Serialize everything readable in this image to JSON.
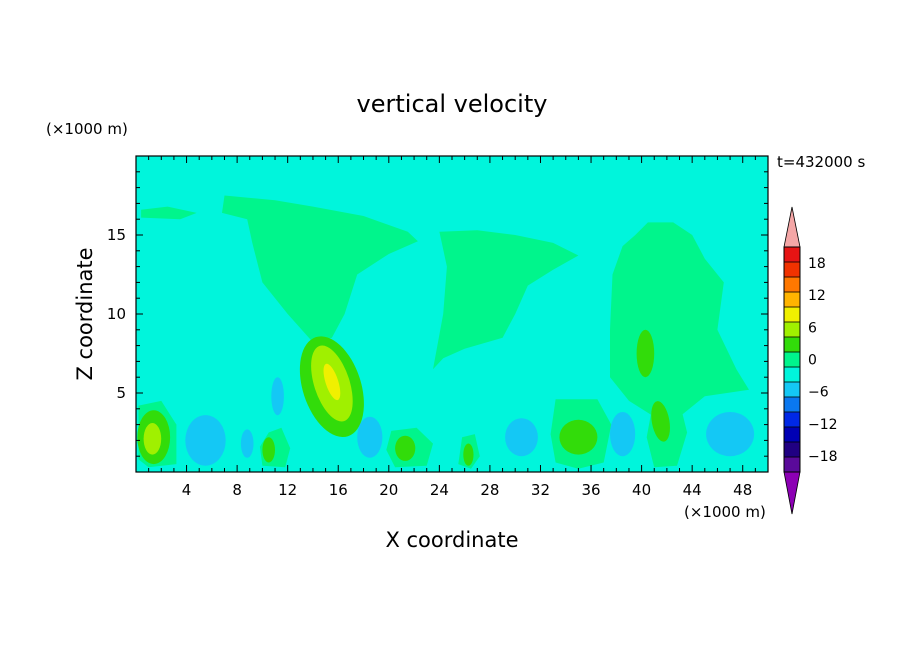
{
  "chart_data": {
    "type": "heatmap",
    "title": "vertical velocity",
    "xlabel": "X coordinate",
    "ylabel": "Z coordinate",
    "x_unit": "(×1000 m)",
    "y_unit": "(×1000 m)",
    "time_label": "t=432000 s",
    "xlim": [
      0,
      50
    ],
    "ylim": [
      0,
      20
    ],
    "x_ticks": [
      4,
      8,
      12,
      16,
      20,
      24,
      28,
      32,
      36,
      40,
      44,
      48
    ],
    "y_ticks": [
      5,
      10,
      15
    ],
    "x_tick_labels": [
      "4",
      "8",
      "12",
      "16",
      "20",
      "24",
      "28",
      "32",
      "36",
      "40",
      "44",
      "48"
    ],
    "y_tick_labels": [
      "5",
      "10",
      "15"
    ],
    "colorbar": {
      "levels": [
        -21,
        -18,
        -15,
        -12,
        -9,
        -6,
        -3,
        0,
        3,
        6,
        9,
        12,
        15,
        18,
        21
      ],
      "labels": [
        "18",
        "12",
        "6",
        "0",
        "−6",
        "−12",
        "−18"
      ],
      "label_values": [
        18,
        12,
        6,
        0,
        -6,
        -12,
        -18
      ],
      "colors": [
        "#5a0a9a",
        "#200082",
        "#0000b4",
        "#0028e6",
        "#0a78f0",
        "#14c8f5",
        "#00f5dc",
        "#00f58c",
        "#32dc0a",
        "#a0f000",
        "#f0f000",
        "#ffb400",
        "#ff7800",
        "#f03200",
        "#e61414"
      ],
      "under_color": "#8c00b4",
      "over_color": "#f4a6a6"
    },
    "background_value": -1.5,
    "regions": [
      {
        "kind": "polygon",
        "value": 1.5,
        "points": [
          [
            7,
            17.5
          ],
          [
            11,
            17.2
          ],
          [
            14,
            16.8
          ],
          [
            18,
            16.2
          ],
          [
            21.5,
            15.2
          ],
          [
            22.3,
            14.6
          ],
          [
            20,
            13.8
          ],
          [
            17.5,
            12.5
          ],
          [
            16.5,
            10
          ],
          [
            15.5,
            8.5
          ],
          [
            14,
            8.2
          ],
          [
            12,
            10
          ],
          [
            10,
            12
          ],
          [
            9.2,
            14.5
          ],
          [
            8.8,
            16
          ],
          [
            6.8,
            16.4
          ]
        ]
      },
      {
        "kind": "polygon",
        "value": 1.5,
        "points": [
          [
            0.4,
            16.6
          ],
          [
            2.5,
            16.8
          ],
          [
            4.8,
            16.4
          ],
          [
            3.5,
            16
          ],
          [
            0.4,
            16.1
          ]
        ]
      },
      {
        "kind": "polygon",
        "value": 1.5,
        "points": [
          [
            24,
            15.2
          ],
          [
            27,
            15.3
          ],
          [
            30,
            15
          ],
          [
            33,
            14.5
          ],
          [
            35,
            13.7
          ],
          [
            33,
            12.8
          ],
          [
            31,
            11.8
          ],
          [
            30,
            10
          ],
          [
            29,
            8.5
          ],
          [
            26,
            7.8
          ],
          [
            24.3,
            7.2
          ],
          [
            23.5,
            6.5
          ],
          [
            24.3,
            10
          ],
          [
            24.6,
            13
          ]
        ]
      },
      {
        "kind": "polygon",
        "value": 1.5,
        "points": [
          [
            40.5,
            15.8
          ],
          [
            42.5,
            15.8
          ],
          [
            44,
            15
          ],
          [
            45,
            13.5
          ],
          [
            46.5,
            12
          ],
          [
            46,
            9
          ],
          [
            47.5,
            6.5
          ],
          [
            48.5,
            5.2
          ],
          [
            45,
            4.8
          ],
          [
            43,
            3.5
          ],
          [
            41,
            3.5
          ],
          [
            39,
            4.5
          ],
          [
            37.5,
            6
          ],
          [
            37.5,
            9
          ],
          [
            37.7,
            12.5
          ],
          [
            38.5,
            14.3
          ],
          [
            39.5,
            15
          ]
        ]
      },
      {
        "kind": "polygon",
        "value": 1.5,
        "points": [
          [
            0.2,
            4.2
          ],
          [
            2,
            4.5
          ],
          [
            3.2,
            3
          ],
          [
            3.2,
            0.5
          ],
          [
            1,
            0.3
          ],
          [
            0.2,
            0.8
          ]
        ]
      },
      {
        "kind": "polygon",
        "value": 1.5,
        "points": [
          [
            10.5,
            2.5
          ],
          [
            11.5,
            2.8
          ],
          [
            12.2,
            1.5
          ],
          [
            11.8,
            0.3
          ],
          [
            10,
            0.4
          ],
          [
            9.8,
            1.6
          ]
        ]
      },
      {
        "kind": "polygon",
        "value": 1.5,
        "points": [
          [
            20.2,
            2.6
          ],
          [
            22.2,
            2.8
          ],
          [
            23.5,
            1.8
          ],
          [
            23,
            0.4
          ],
          [
            20.5,
            0.3
          ],
          [
            19.8,
            1.4
          ]
        ]
      },
      {
        "kind": "polygon",
        "value": 1.5,
        "points": [
          [
            25.8,
            2.2
          ],
          [
            26.8,
            2.4
          ],
          [
            27.2,
            1
          ],
          [
            26.5,
            0.2
          ],
          [
            25.5,
            0.5
          ]
        ]
      },
      {
        "kind": "polygon",
        "value": 1.5,
        "points": [
          [
            33.2,
            4.6
          ],
          [
            36.5,
            4.6
          ],
          [
            37.6,
            3
          ],
          [
            37,
            0.6
          ],
          [
            35,
            0.2
          ],
          [
            33.2,
            0.6
          ],
          [
            32.8,
            2.4
          ]
        ]
      },
      {
        "kind": "polygon",
        "value": 1.5,
        "points": [
          [
            41,
            4.8
          ],
          [
            42.8,
            5.1
          ],
          [
            43.6,
            2.5
          ],
          [
            42.8,
            0.4
          ],
          [
            41,
            0.3
          ],
          [
            40.4,
            2.2
          ]
        ]
      },
      {
        "kind": "ellipse",
        "value": 4.5,
        "cx": 15.5,
        "cy": 5.4,
        "rx": 2.3,
        "ry": 3.3,
        "angle": 18
      },
      {
        "kind": "ellipse",
        "value": 7.5,
        "cx": 15.5,
        "cy": 5.6,
        "rx": 1.4,
        "ry": 2.5,
        "angle": 18
      },
      {
        "kind": "ellipse",
        "value": 10.5,
        "cx": 15.5,
        "cy": 5.7,
        "rx": 0.5,
        "ry": 1.2,
        "angle": 18
      },
      {
        "kind": "ellipse",
        "value": 4.5,
        "cx": 1.4,
        "cy": 2.2,
        "rx": 1.3,
        "ry": 1.7,
        "angle": 0
      },
      {
        "kind": "ellipse",
        "value": 7.5,
        "cx": 1.3,
        "cy": 2.1,
        "rx": 0.7,
        "ry": 1,
        "angle": 0
      },
      {
        "kind": "ellipse",
        "value": 4.5,
        "cx": 35,
        "cy": 2.2,
        "rx": 1.5,
        "ry": 1.1,
        "angle": 0
      },
      {
        "kind": "ellipse",
        "value": 4.5,
        "cx": 41.5,
        "cy": 3.2,
        "rx": 0.7,
        "ry": 1.3,
        "angle": 10
      },
      {
        "kind": "ellipse",
        "value": 4.5,
        "cx": 40.3,
        "cy": 7.5,
        "rx": 0.7,
        "ry": 1.5,
        "angle": 0
      },
      {
        "kind": "ellipse",
        "value": 4.5,
        "cx": 10.5,
        "cy": 1.4,
        "rx": 0.5,
        "ry": 0.8,
        "angle": 0
      },
      {
        "kind": "ellipse",
        "value": 4.5,
        "cx": 21.3,
        "cy": 1.5,
        "rx": 0.8,
        "ry": 0.8,
        "angle": 0
      },
      {
        "kind": "ellipse",
        "value": 4.5,
        "cx": 26.3,
        "cy": 1.1,
        "rx": 0.4,
        "ry": 0.7,
        "angle": 0
      },
      {
        "kind": "ellipse",
        "value": -4.5,
        "cx": 5.5,
        "cy": 2,
        "rx": 1.6,
        "ry": 1.6,
        "angle": 0
      },
      {
        "kind": "ellipse",
        "value": -4.5,
        "cx": 47,
        "cy": 2.4,
        "rx": 1.9,
        "ry": 1.4,
        "angle": 0
      },
      {
        "kind": "ellipse",
        "value": -4.5,
        "cx": 38.5,
        "cy": 2.4,
        "rx": 1,
        "ry": 1.4,
        "angle": 0
      },
      {
        "kind": "ellipse",
        "value": -4.5,
        "cx": 30.5,
        "cy": 2.2,
        "rx": 1.3,
        "ry": 1.2,
        "angle": 0
      },
      {
        "kind": "ellipse",
        "value": -4.5,
        "cx": 18.5,
        "cy": 2.2,
        "rx": 1,
        "ry": 1.3,
        "angle": 0
      },
      {
        "kind": "ellipse",
        "value": -4.5,
        "cx": 11.2,
        "cy": 4.8,
        "rx": 0.5,
        "ry": 1.2,
        "angle": 0
      },
      {
        "kind": "ellipse",
        "value": -4.5,
        "cx": 8.8,
        "cy": 1.8,
        "rx": 0.5,
        "ry": 0.9,
        "angle": 0
      }
    ]
  }
}
